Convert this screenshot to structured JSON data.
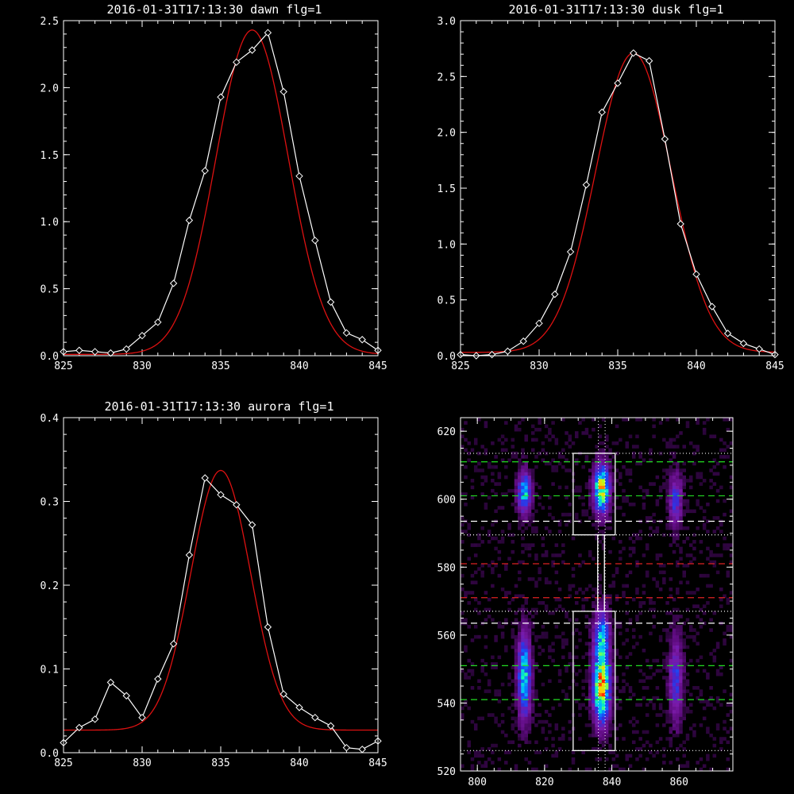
{
  "chart_data": [
    {
      "type": "line",
      "title": "2016-01-31T17:13:30 dawn flg=1",
      "xlim": [
        825,
        845
      ],
      "ylim": [
        0,
        2.5
      ],
      "xticks": [
        "825",
        "830",
        "835",
        "840",
        "845"
      ],
      "yticks": [
        "0.0",
        "0.5",
        "1.0",
        "1.5",
        "2.0",
        "2.5"
      ],
      "colors": {
        "data": "#ffffff",
        "fit": "#dd1111"
      },
      "series": [
        {
          "kind": "data",
          "markers": "diamond",
          "x": [
            825,
            826,
            827,
            828,
            829,
            830,
            831,
            832,
            833,
            834,
            835,
            836,
            837,
            838,
            839,
            840,
            841,
            842,
            843,
            844,
            845
          ],
          "y": [
            0.03,
            0.04,
            0.03,
            0.02,
            0.05,
            0.15,
            0.25,
            0.54,
            1.01,
            1.38,
            1.93,
            2.19,
            2.28,
            2.41,
            1.97,
            1.34,
            0.86,
            0.4,
            0.17,
            0.12,
            0.04
          ]
        },
        {
          "kind": "fit",
          "model": "gaussian",
          "amplitude": 2.42,
          "center": 837.0,
          "sigma": 2.3,
          "offset": 0.01
        }
      ]
    },
    {
      "type": "line",
      "title": "2016-01-31T17:13:30 dusk flg=1",
      "xlim": [
        825,
        845
      ],
      "ylim": [
        0,
        3.0
      ],
      "xticks": [
        "825",
        "830",
        "835",
        "840",
        "845"
      ],
      "yticks": [
        "0.0",
        "0.5",
        "1.0",
        "1.5",
        "2.0",
        "2.5",
        "3.0"
      ],
      "colors": {
        "data": "#ffffff",
        "fit": "#dd1111"
      },
      "series": [
        {
          "kind": "data",
          "markers": "diamond",
          "x": [
            825,
            826,
            827,
            828,
            829,
            830,
            831,
            832,
            833,
            834,
            835,
            836,
            837,
            838,
            839,
            840,
            841,
            842,
            843,
            844,
            845
          ],
          "y": [
            0.01,
            0.0,
            0.01,
            0.04,
            0.13,
            0.29,
            0.55,
            0.93,
            1.53,
            2.18,
            2.44,
            2.71,
            2.64,
            1.94,
            1.18,
            0.73,
            0.44,
            0.2,
            0.11,
            0.06,
            0.01
          ]
        },
        {
          "kind": "fit",
          "model": "gaussian",
          "amplitude": 2.68,
          "center": 836.0,
          "sigma": 2.4,
          "offset": 0.03
        }
      ]
    },
    {
      "type": "line",
      "title": "2016-01-31T17:13:30 aurora flg=1",
      "xlim": [
        825,
        845
      ],
      "ylim": [
        0,
        0.4
      ],
      "xticks": [
        "825",
        "830",
        "835",
        "840",
        "845"
      ],
      "yticks": [
        "0.0",
        "0.1",
        "0.2",
        "0.3",
        "0.4"
      ],
      "colors": {
        "data": "#ffffff",
        "fit": "#dd1111"
      },
      "series": [
        {
          "kind": "data",
          "markers": "diamond",
          "x": [
            825,
            826,
            827,
            828,
            829,
            830,
            831,
            832,
            833,
            834,
            835,
            836,
            837,
            838,
            839,
            840,
            841,
            842,
            843,
            844,
            845
          ],
          "y": [
            0.012,
            0.03,
            0.04,
            0.084,
            0.068,
            0.042,
            0.088,
            0.13,
            0.236,
            0.328,
            0.308,
            0.296,
            0.272,
            0.15,
            0.07,
            0.054,
            0.042,
            0.032,
            0.006,
            0.004,
            0.014
          ]
        },
        {
          "kind": "fit",
          "model": "gaussian",
          "amplitude": 0.31,
          "center": 835.0,
          "sigma": 1.9,
          "offset": 0.027
        }
      ]
    },
    {
      "type": "heatmap",
      "title": "",
      "xlim": [
        795,
        876
      ],
      "ylim": [
        520,
        624
      ],
      "xticks": [
        "800",
        "820",
        "840",
        "860"
      ],
      "yticks": [
        "520",
        "540",
        "560",
        "580",
        "600",
        "620"
      ],
      "colormap": [
        "#000000",
        "#5a0a7a",
        "#7a1aa8",
        "#3a2ad8",
        "#1058ff",
        "#00b8ff",
        "#10ffb0",
        "#b0ff20",
        "#ffd000",
        "#ff2000"
      ],
      "blobs": [
        {
          "x": 814,
          "y": 602,
          "sx": 1.3,
          "sy": 4.0,
          "amp": 0.55
        },
        {
          "x": 814,
          "y": 548,
          "sx": 1.3,
          "sy": 8.0,
          "amp": 0.58
        },
        {
          "x": 837,
          "y": 603,
          "sx": 1.5,
          "sy": 4.5,
          "amp": 0.85
        },
        {
          "x": 837,
          "y": 545,
          "sx": 1.6,
          "sy": 7.0,
          "amp": 0.92
        },
        {
          "x": 837,
          "y": 560,
          "sx": 1.5,
          "sy": 5.0,
          "amp": 0.45
        },
        {
          "x": 859,
          "y": 600,
          "sx": 1.3,
          "sy": 5.0,
          "amp": 0.32
        },
        {
          "x": 859,
          "y": 547,
          "sx": 1.3,
          "sy": 8.0,
          "amp": 0.33
        }
      ],
      "lines": {
        "green_dashed_y": [
          611,
          601,
          551,
          541
        ],
        "white_dashed_y": [
          593.5,
          563.5
        ],
        "red_dashed_y": [
          581,
          571
        ],
        "white_dotted_y": [
          613.5,
          589.5,
          567,
          526
        ],
        "white_dotted_x": [
          836,
          838
        ],
        "colors": {
          "green": "#22dd22",
          "white": "#ffffff",
          "red": "#dd2222"
        }
      },
      "boxes": [
        {
          "x0": 828.5,
          "x1": 841,
          "y0": 589.5,
          "y1": 613.5
        },
        {
          "x0": 828.5,
          "x1": 841,
          "y0": 526,
          "y1": 567
        },
        {
          "x0": 835.8,
          "x1": 837.8,
          "y0": 567,
          "y1": 589.5
        }
      ]
    }
  ]
}
